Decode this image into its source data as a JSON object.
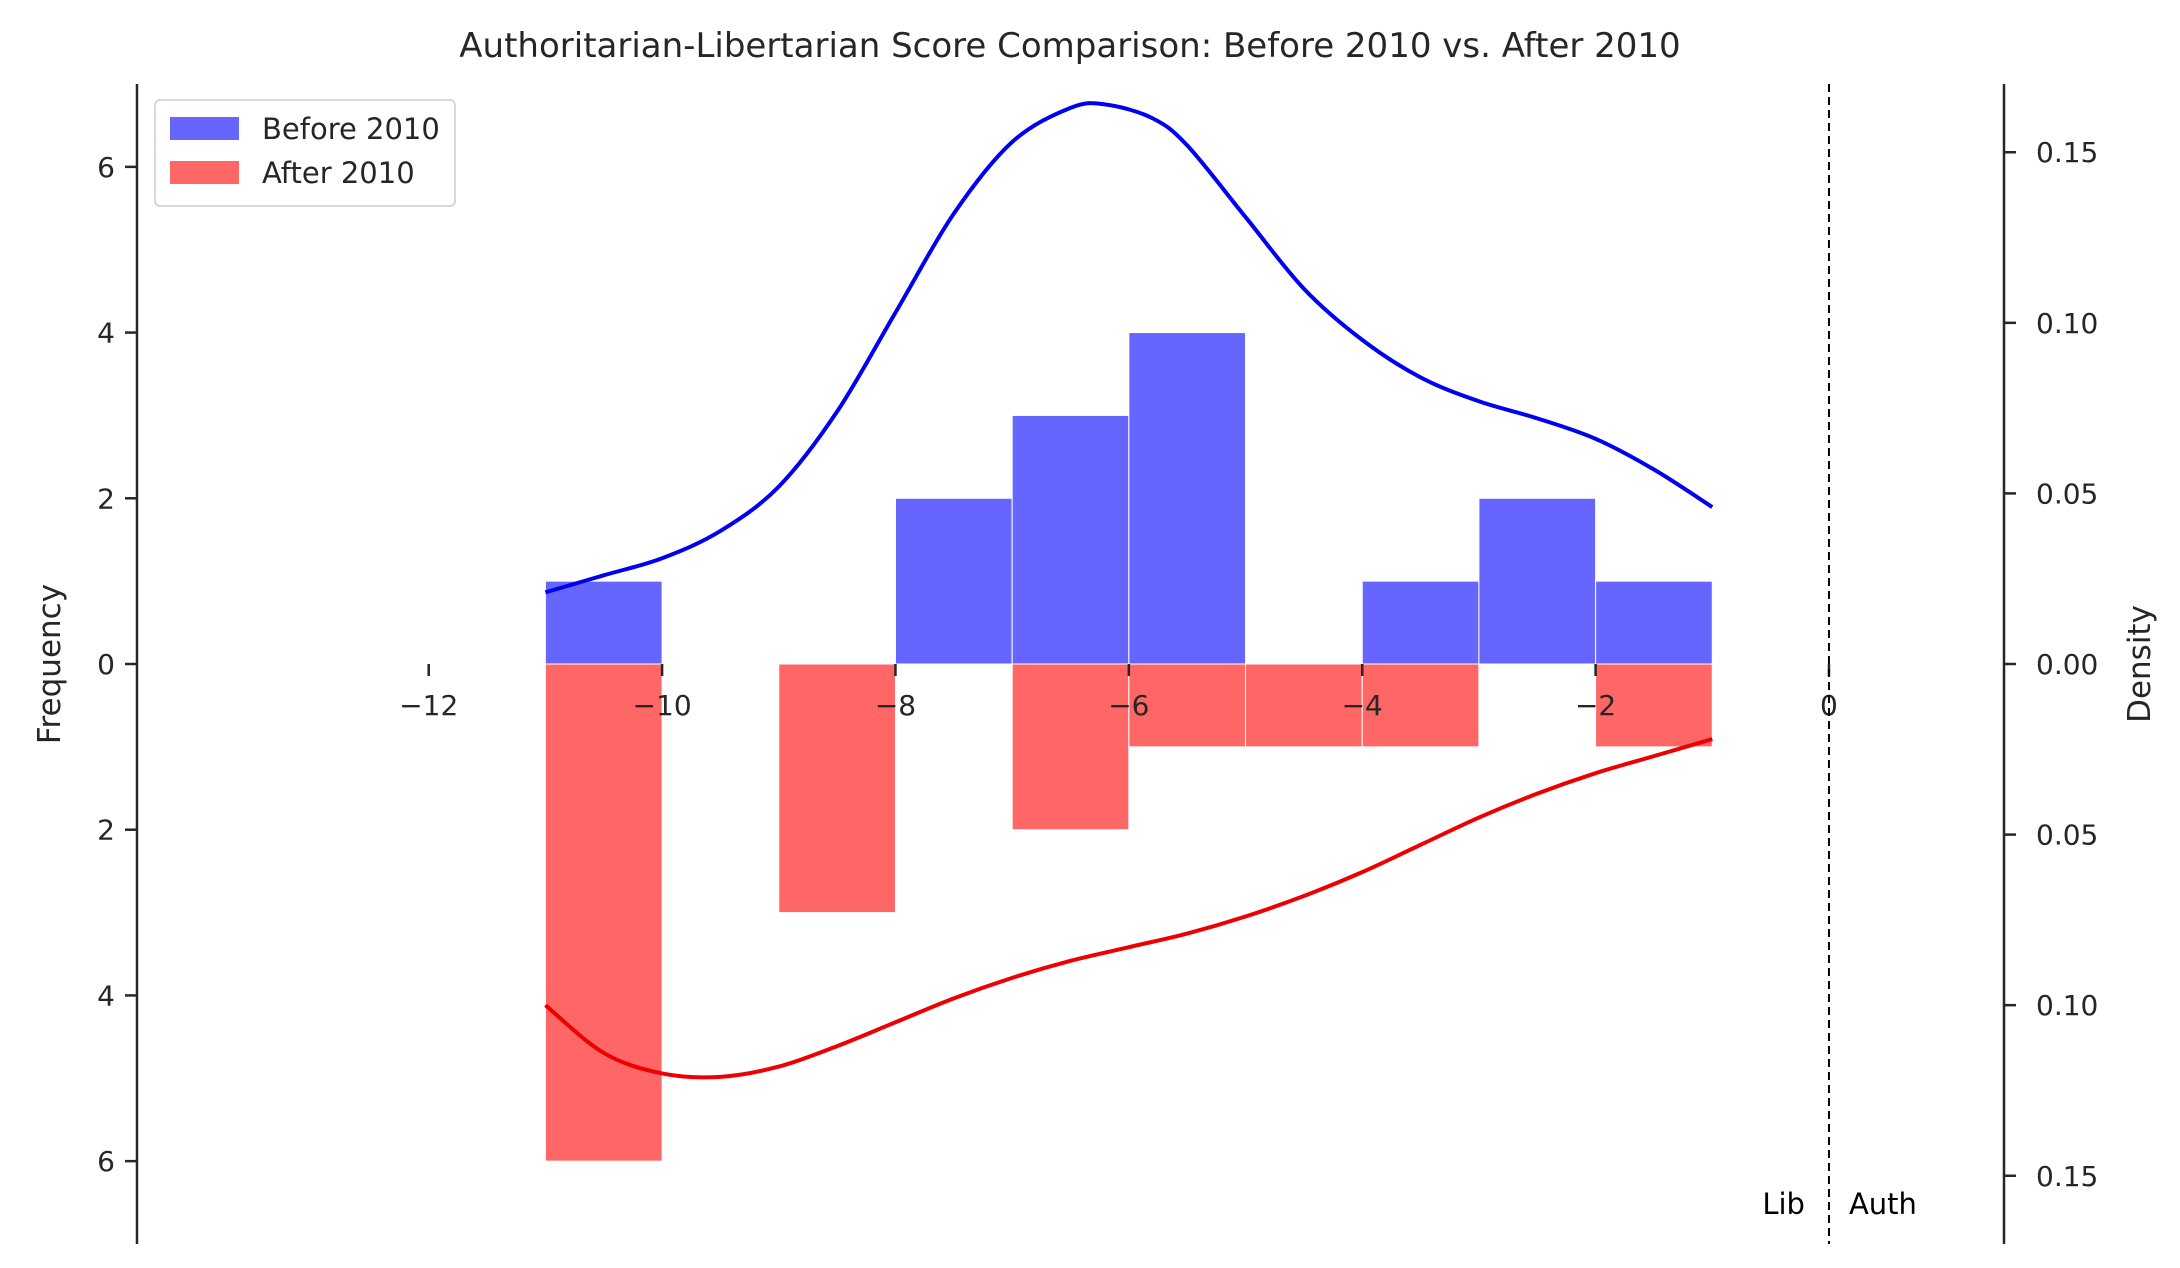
{
  "chart_data": {
    "type": "bar",
    "title": "Authoritarian-Libertarian Score Comparison: Before 2010 vs. After 2010",
    "ylabel": "Frequency",
    "y2label": "Density",
    "xlim": [
      -14.5,
      1.5
    ],
    "ylim": [
      -7,
      7
    ],
    "y2lim": [
      -0.17,
      0.17
    ],
    "x_ticks": [
      -12,
      -10,
      -8,
      -6,
      -4,
      -2,
      0
    ],
    "y_ticks": [
      -6,
      -4,
      -2,
      0,
      2,
      4,
      6
    ],
    "y2_ticks": [
      -0.15,
      -0.1,
      -0.05,
      0,
      0.05,
      0.1,
      0.15
    ],
    "bin_edges": [
      -11,
      -10,
      -9,
      -8,
      -7,
      -6,
      -5,
      -4,
      -3,
      -2,
      -1
    ],
    "series": [
      {
        "name": "Before 2010",
        "color": "#6666ff",
        "kde_color": "#0000ee",
        "direction": "up",
        "values": [
          1,
          0,
          0,
          2,
          3,
          4,
          0,
          1,
          2,
          1
        ],
        "kde": [
          [
            -11,
            0.021
          ],
          [
            -10.5,
            0.026
          ],
          [
            -10,
            0.031
          ],
          [
            -9.5,
            0.039
          ],
          [
            -9,
            0.052
          ],
          [
            -8.5,
            0.074
          ],
          [
            -8,
            0.103
          ],
          [
            -7.5,
            0.132
          ],
          [
            -7,
            0.153
          ],
          [
            -6.5,
            0.163
          ],
          [
            -6.2,
            0.164
          ],
          [
            -5.8,
            0.16
          ],
          [
            -5.5,
            0.152
          ],
          [
            -5,
            0.131
          ],
          [
            -4.5,
            0.11
          ],
          [
            -4,
            0.095
          ],
          [
            -3.5,
            0.084
          ],
          [
            -3,
            0.077
          ],
          [
            -2.5,
            0.072
          ],
          [
            -2,
            0.066
          ],
          [
            -1.5,
            0.057
          ],
          [
            -1,
            0.046
          ]
        ]
      },
      {
        "name": "After 2010",
        "color": "#ff6666",
        "kde_color": "#ee0000",
        "direction": "down",
        "values": [
          6,
          0,
          3,
          0,
          2,
          1,
          1,
          1,
          0,
          1
        ],
        "kde": [
          [
            -11,
            0.1
          ],
          [
            -10.5,
            0.114
          ],
          [
            -10,
            0.12
          ],
          [
            -9.5,
            0.121
          ],
          [
            -9,
            0.118
          ],
          [
            -8.5,
            0.112
          ],
          [
            -8,
            0.105
          ],
          [
            -7.5,
            0.098
          ],
          [
            -7,
            0.092
          ],
          [
            -6.5,
            0.087
          ],
          [
            -6,
            0.083
          ],
          [
            -5.5,
            0.079
          ],
          [
            -5,
            0.074
          ],
          [
            -4.5,
            0.068
          ],
          [
            -4,
            0.061
          ],
          [
            -3.5,
            0.053
          ],
          [
            -3,
            0.045
          ],
          [
            -2.5,
            0.038
          ],
          [
            -2,
            0.032
          ],
          [
            -1.5,
            0.027
          ],
          [
            -1,
            0.022
          ]
        ]
      }
    ],
    "divider_x": 0,
    "annotations": {
      "left": "Lib",
      "right": "Auth"
    },
    "legend": {
      "placement": "top-left",
      "entries": [
        "Before 2010",
        "After 2010"
      ]
    }
  }
}
